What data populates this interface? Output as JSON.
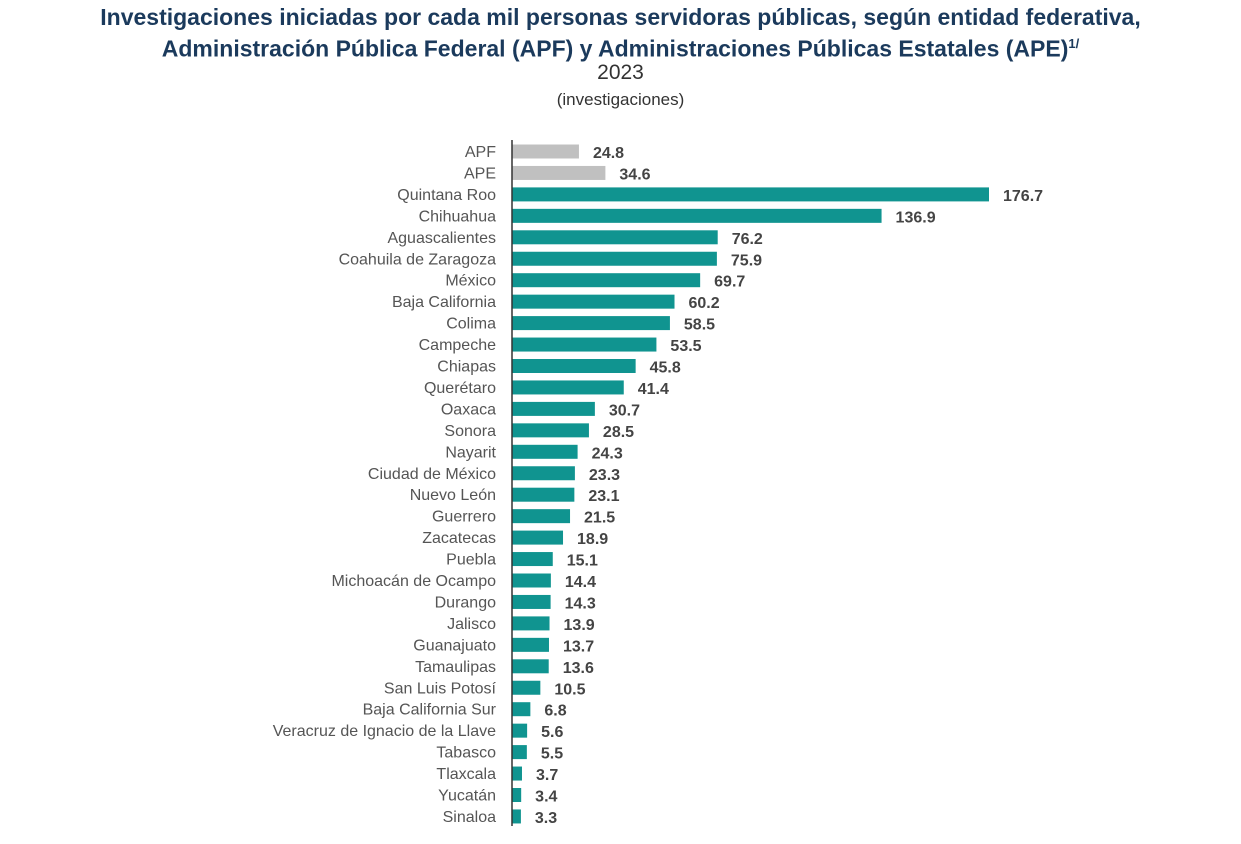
{
  "chart_data": {
    "type": "bar",
    "orientation": "horizontal",
    "title_line1": "Investigaciones iniciadas por cada mil personas servidoras públicas, según entidad federativa,",
    "title_line2": "Administración Pública Federal (APF) y Administraciones Públicas Estatales (APE)",
    "title_footnote": "1/",
    "subtitle": "2023",
    "unit": "(investigaciones)",
    "categories": [
      "APF",
      "APE",
      "Quintana Roo",
      "Chihuahua",
      "Aguascalientes",
      "Coahuila de Zaragoza",
      "México",
      "Baja California",
      "Colima",
      "Campeche",
      "Chiapas",
      "Querétaro",
      "Oaxaca",
      "Sonora",
      "Nayarit",
      "Ciudad de México",
      "Nuevo León",
      "Guerrero",
      "Zacatecas",
      "Puebla",
      "Michoacán de Ocampo",
      "Durango",
      "Jalisco",
      "Guanajuato",
      "Tamaulipas",
      "San Luis Potosí",
      "Baja California Sur",
      "Veracruz de Ignacio de la Llave",
      "Tabasco",
      "Tlaxcala",
      "Yucatán",
      "Sinaloa"
    ],
    "values": [
      24.8,
      34.6,
      176.7,
      136.9,
      76.2,
      75.9,
      69.7,
      60.2,
      58.5,
      53.5,
      45.8,
      41.4,
      30.7,
      28.5,
      24.3,
      23.3,
      23.1,
      21.5,
      18.9,
      15.1,
      14.4,
      14.3,
      13.9,
      13.7,
      13.6,
      10.5,
      6.8,
      5.6,
      5.5,
      3.7,
      3.4,
      3.3
    ],
    "xlim": [
      0,
      176.7
    ],
    "grid": false,
    "data_labels": true,
    "colors": {
      "federal_state_aggregate": "#c0c0c0",
      "states": "#109490",
      "axis": "#333333"
    }
  }
}
